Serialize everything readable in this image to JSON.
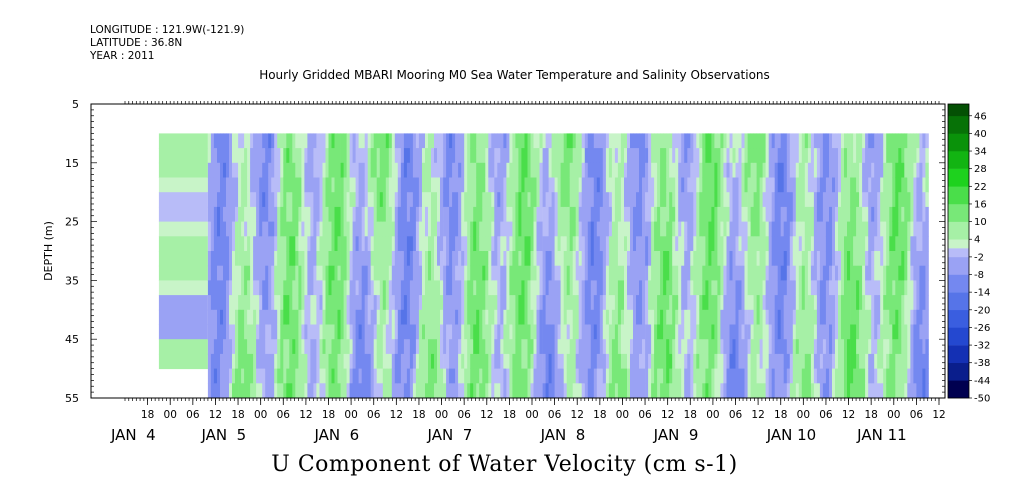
{
  "header": {
    "longitude": "LONGITUDE : 121.9W(-121.9)",
    "latitude": "LATITUDE : 36.8N",
    "year": "YEAR : 2011"
  },
  "chart_data": {
    "type": "heatmap",
    "title": "Hourly Gridded MBARI Mooring M0 Sea Water Temperature and Salinity Observations",
    "xlabel": "U Component of Water Velocity (cm s-1)",
    "ylabel": "DEPTH (m)",
    "y_axis": {
      "range": [
        5,
        55
      ],
      "inverted": true,
      "ticks": [
        5,
        15,
        25,
        35,
        45,
        55
      ]
    },
    "x_axis": {
      "range_hours": [
        0,
        216
      ],
      "hour_ticks": [
        {
          "h": "18",
          "t": 6
        },
        {
          "h": "00",
          "t": 12
        },
        {
          "h": "06",
          "t": 18
        },
        {
          "h": "12",
          "t": 24
        },
        {
          "h": "18",
          "t": 30
        },
        {
          "h": "00",
          "t": 36
        },
        {
          "h": "06",
          "t": 42
        },
        {
          "h": "12",
          "t": 48
        },
        {
          "h": "18",
          "t": 54
        },
        {
          "h": "00",
          "t": 60
        },
        {
          "h": "06",
          "t": 66
        },
        {
          "h": "12",
          "t": 72
        },
        {
          "h": "18",
          "t": 78
        },
        {
          "h": "00",
          "t": 84
        },
        {
          "h": "06",
          "t": 90
        },
        {
          "h": "12",
          "t": 96
        },
        {
          "h": "18",
          "t": 102
        },
        {
          "h": "00",
          "t": 108
        },
        {
          "h": "06",
          "t": 114
        },
        {
          "h": "12",
          "t": 120
        },
        {
          "h": "18",
          "t": 126
        },
        {
          "h": "00",
          "t": 132
        },
        {
          "h": "06",
          "t": 138
        },
        {
          "h": "12",
          "t": 144
        },
        {
          "h": "18",
          "t": 150
        },
        {
          "h": "00",
          "t": 156
        },
        {
          "h": "06",
          "t": 162
        },
        {
          "h": "12",
          "t": 168
        },
        {
          "h": "18",
          "t": 174
        },
        {
          "h": "00",
          "t": 180
        },
        {
          "h": "06",
          "t": 186
        },
        {
          "h": "12",
          "t": 192
        },
        {
          "h": "18",
          "t": 198
        },
        {
          "h": "00",
          "t": 204
        },
        {
          "h": "06",
          "t": 210
        },
        {
          "h": "12",
          "t": 216
        }
      ],
      "day_labels": [
        {
          "label": "JAN  4",
          "t": 0
        },
        {
          "label": "JAN  5",
          "t": 24
        },
        {
          "label": "JAN  6",
          "t": 54
        },
        {
          "label": "JAN  7",
          "t": 84
        },
        {
          "label": "JAN  8",
          "t": 114
        },
        {
          "label": "JAN  9",
          "t": 144
        },
        {
          "label": "JAN 10",
          "t": 174
        },
        {
          "label": "JAN 11",
          "t": 198
        }
      ]
    },
    "data_extent": {
      "depth_range": [
        10,
        55
      ],
      "early_period_hours": [
        9,
        22
      ],
      "early_depth_range": [
        10,
        50
      ],
      "full_period_hours": [
        22,
        213
      ]
    },
    "colorbar": {
      "ticks": [
        46,
        40,
        34,
        28,
        22,
        16,
        10,
        4,
        -2,
        -8,
        -14,
        -20,
        -26,
        -32,
        -38,
        -44,
        -50
      ],
      "range": [
        -50,
        50
      ]
    },
    "grid": false,
    "legend": "right colorbar"
  }
}
